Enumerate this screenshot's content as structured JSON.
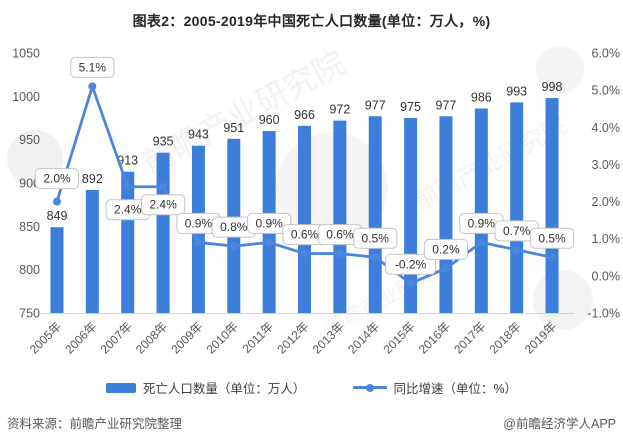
{
  "title": "图表2：2005-2019年中国死亡人口数量(单位：万人，%)",
  "footer": {
    "source": "资料来源：前瞻产业研究院整理",
    "credit": "@前瞻经济学人APP"
  },
  "watermark": {
    "text": "前瞻产业研究院"
  },
  "colors": {
    "bar": "#3d7edb",
    "line": "#4a86dd",
    "axis_text": "#595959",
    "value_label": "#333333",
    "callout_border": "#c4c4c4",
    "baseline": "#d4d4d4"
  },
  "chart_data": {
    "type": "bar",
    "title": "图表2：2005-2019年中国死亡人口数量(单位：万人，%)",
    "categories": [
      "2005年",
      "2006年",
      "2007年",
      "2008年",
      "2009年",
      "2010年",
      "2011年",
      "2012年",
      "2013年",
      "2014年",
      "2015年",
      "2016年",
      "2017年",
      "2018年",
      "2019年"
    ],
    "series": [
      {
        "name": "死亡人口数量（单位：万人）",
        "type": "bar",
        "axis": "left",
        "color": "#3d7edb",
        "values": [
          849,
          892,
          913,
          935,
          943,
          951,
          960,
          966,
          972,
          977,
          975,
          977,
          986,
          993,
          998
        ],
        "labels": [
          "849",
          "892",
          "913",
          "935",
          "943",
          "951",
          "960",
          "966",
          "972",
          "977",
          "975",
          "977",
          "986",
          "993",
          "998"
        ]
      },
      {
        "name": "同比增速（单位：%）",
        "type": "line",
        "axis": "right",
        "color": "#4a86dd",
        "values": [
          2.0,
          5.1,
          2.4,
          2.4,
          0.9,
          0.8,
          0.9,
          0.6,
          0.6,
          0.5,
          -0.2,
          0.2,
          0.9,
          0.7,
          0.5
        ],
        "labels": [
          "2.0%",
          "5.1%",
          "2.4%",
          "2.4%",
          "0.9%",
          "0.8%",
          "0.9%",
          "0.6%",
          "0.6%",
          "0.5%",
          "-0.2%",
          "0.2%",
          "0.9%",
          "0.7%",
          "0.5%"
        ]
      }
    ],
    "left_axis": {
      "min": 750,
      "max": 1050,
      "step": 50,
      "ticks": [
        "1050",
        "1000",
        "950",
        "900",
        "850",
        "800",
        "750"
      ]
    },
    "right_axis": {
      "min": -1.0,
      "max": 6.0,
      "step": 1.0,
      "ticks": [
        "6.0%",
        "5.0%",
        "4.0%",
        "3.0%",
        "2.0%",
        "1.0%",
        "0.0%",
        "-1.0%"
      ]
    },
    "grid": false,
    "legend_position": "bottom",
    "xlabel": "",
    "ylabel": ""
  }
}
